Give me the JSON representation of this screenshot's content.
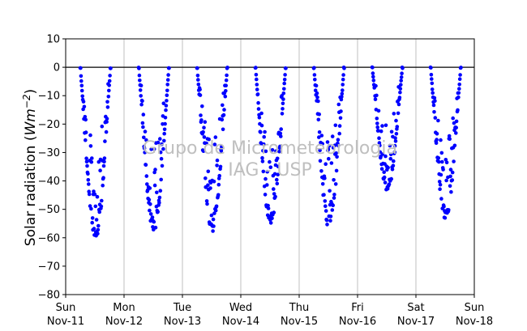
{
  "chart_data": {
    "type": "scatter",
    "title": "",
    "xlabel": "",
    "ylabel": "Solar radiation (Wm⁻²)",
    "ylabel_main": "Solar radiation (",
    "ylabel_unit": "Wm",
    "ylabel_exp": "−2",
    "ylabel_close": ")",
    "ylim": [
      -80,
      10
    ],
    "yticks": [
      10,
      0,
      -10,
      -20,
      -30,
      -40,
      -50,
      -60,
      -70,
      -80
    ],
    "ytick_labels": [
      "10",
      "0",
      "−10",
      "−20",
      "−30",
      "−40",
      "−50",
      "−60",
      "−70",
      "−80"
    ],
    "xlim": [
      "2014-11-11",
      "2014-11-18"
    ],
    "xticks": [
      {
        "day": "Sun",
        "date": "Nov-11"
      },
      {
        "day": "Mon",
        "date": "Nov-12"
      },
      {
        "day": "Tue",
        "date": "Nov-13"
      },
      {
        "day": "Wed",
        "date": "Nov-14"
      },
      {
        "day": "Thu",
        "date": "Nov-15"
      },
      {
        "day": "Fri",
        "date": "Nov-16"
      },
      {
        "day": "Sat",
        "date": "Nov-17"
      },
      {
        "day": "Sun",
        "date": "Nov-18"
      }
    ],
    "grid": "vertical",
    "zero_line": 0,
    "marker_color": "#0000ff",
    "series": [
      {
        "days": [
          {
            "date": "Nov-11",
            "sunrise_hour": 6.0,
            "sunset_hour": 18.5,
            "min_value": -61
          },
          {
            "date": "Nov-12",
            "sunrise_hour": 6.0,
            "sunset_hour": 18.5,
            "min_value": -58
          },
          {
            "date": "Nov-13",
            "sunrise_hour": 6.0,
            "sunset_hour": 18.5,
            "min_value": -58
          },
          {
            "date": "Nov-14",
            "sunrise_hour": 6.0,
            "sunset_hour": 18.5,
            "min_value": -55
          },
          {
            "date": "Nov-15",
            "sunrise_hour": 6.0,
            "sunset_hour": 18.5,
            "min_value": -57
          },
          {
            "date": "Nov-16",
            "sunrise_hour": 6.0,
            "sunset_hour": 18.5,
            "min_value": -44
          },
          {
            "date": "Nov-17",
            "sunrise_hour": 6.0,
            "sunset_hour": 18.5,
            "min_value": -54
          }
        ]
      }
    ]
  },
  "watermark": {
    "line1": "Grupo de Micrometeorologia",
    "line2": "IAG - USP"
  }
}
